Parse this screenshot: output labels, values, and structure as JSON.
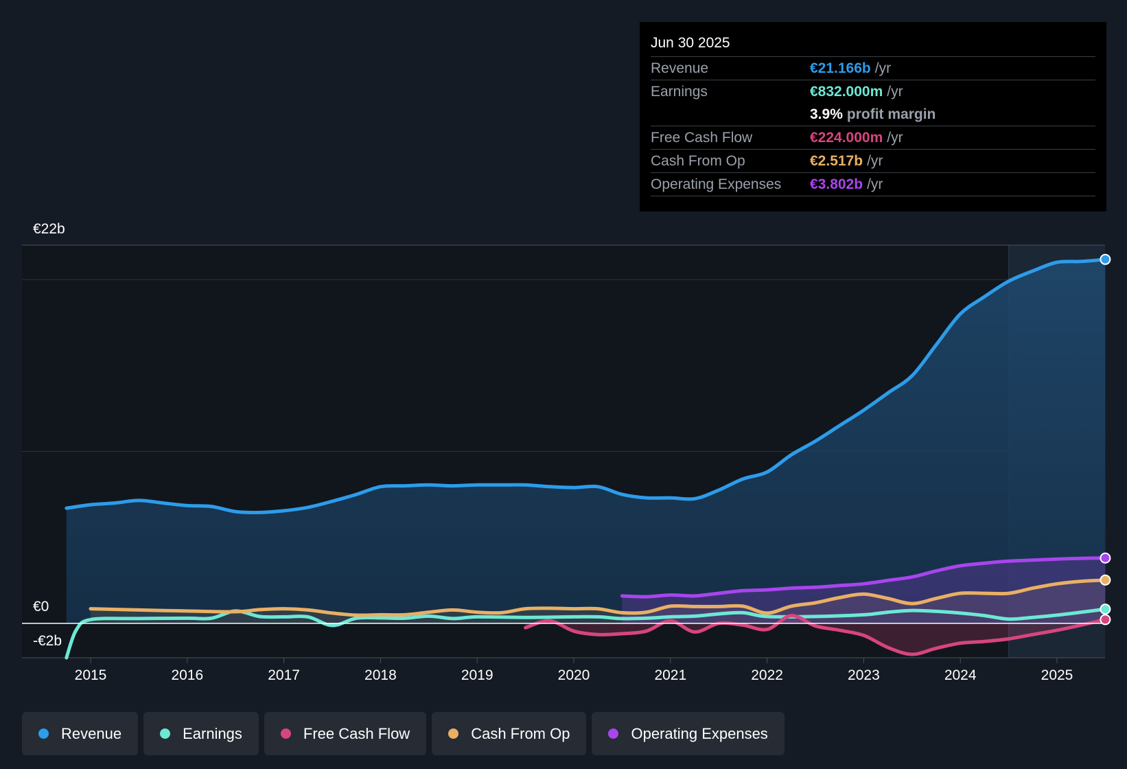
{
  "tooltip": {
    "date": "Jun 30 2025",
    "rows": [
      {
        "label": "Revenue",
        "value": "€21.166b",
        "unit": "/yr",
        "color": "#2d9cea"
      },
      {
        "label": "Earnings",
        "value": "€832.000m",
        "unit": "/yr",
        "color": "#6ce8d4"
      },
      {
        "label": "Free Cash Flow",
        "value": "€224.000m",
        "unit": "/yr",
        "color": "#d7457f"
      },
      {
        "label": "Cash From Op",
        "value": "€2.517b",
        "unit": "/yr",
        "color": "#e9b064"
      },
      {
        "label": "Operating Expenses",
        "value": "€3.802b",
        "unit": "/yr",
        "color": "#a845ee"
      }
    ],
    "margin_value": "3.9%",
    "margin_label": "profit margin"
  },
  "legend": [
    {
      "label": "Revenue",
      "color": "#2d9cea"
    },
    {
      "label": "Earnings",
      "color": "#6ce8d4"
    },
    {
      "label": "Free Cash Flow",
      "color": "#d7457f"
    },
    {
      "label": "Cash From Op",
      "color": "#e9b064"
    },
    {
      "label": "Operating Expenses",
      "color": "#a845ee"
    }
  ],
  "chart_data": {
    "type": "line",
    "title": "",
    "xlabel": "",
    "ylabel": "",
    "y_tick_labels": {
      "top": "€22b",
      "zero": "€0",
      "bottom": "-€2b"
    },
    "ylim": [
      -2,
      22
    ],
    "xlim": [
      2014.5,
      2025.5
    ],
    "x_ticks": [
      2015,
      2016,
      2017,
      2018,
      2019,
      2020,
      2021,
      2022,
      2023,
      2024,
      2025
    ],
    "x_tick_labels": [
      "2015",
      "2016",
      "2017",
      "2018",
      "2019",
      "2020",
      "2021",
      "2022",
      "2023",
      "2024",
      "2025"
    ],
    "highlight_start": 2024.5,
    "series": [
      {
        "name": "Revenue",
        "color": "#2d9cea",
        "fill": true,
        "x": [
          2014.75,
          2015,
          2015.25,
          2015.5,
          2015.75,
          2016,
          2016.25,
          2016.5,
          2016.75,
          2017,
          2017.25,
          2017.5,
          2017.75,
          2018,
          2018.25,
          2018.5,
          2018.75,
          2019,
          2019.25,
          2019.5,
          2019.75,
          2020,
          2020.25,
          2020.5,
          2020.75,
          2021,
          2021.25,
          2021.5,
          2021.75,
          2022,
          2022.25,
          2022.5,
          2022.75,
          2023,
          2023.25,
          2023.5,
          2023.75,
          2024,
          2024.25,
          2024.5,
          2024.75,
          2025,
          2025.25,
          2025.5
        ],
        "y": [
          6.7,
          6.9,
          7.0,
          7.15,
          7.0,
          6.85,
          6.8,
          6.5,
          6.45,
          6.55,
          6.75,
          7.1,
          7.5,
          7.95,
          8.0,
          8.05,
          8.0,
          8.05,
          8.05,
          8.05,
          7.95,
          7.9,
          7.95,
          7.5,
          7.3,
          7.3,
          7.25,
          7.75,
          8.4,
          8.8,
          9.8,
          10.6,
          11.5,
          12.4,
          13.4,
          14.4,
          16.2,
          18.0,
          19.0,
          19.9,
          20.5,
          21.0,
          21.05,
          21.17
        ]
      },
      {
        "name": "Earnings",
        "color": "#6ce8d4",
        "fill": false,
        "x": [
          2014.75,
          2014.85,
          2015,
          2015.5,
          2016,
          2016.25,
          2016.5,
          2016.75,
          2017,
          2017.25,
          2017.5,
          2017.75,
          2018,
          2018.25,
          2018.5,
          2018.75,
          2019,
          2019.5,
          2020,
          2020.25,
          2020.5,
          2020.75,
          2021,
          2021.25,
          2021.5,
          2021.75,
          2022,
          2022.5,
          2023,
          2023.25,
          2023.5,
          2023.75,
          2024,
          2024.25,
          2024.5,
          2024.75,
          2025,
          2025.25,
          2025.5
        ],
        "y": [
          -2.0,
          -0.4,
          0.22,
          0.28,
          0.3,
          0.3,
          0.72,
          0.4,
          0.38,
          0.38,
          -0.12,
          0.3,
          0.32,
          0.3,
          0.42,
          0.28,
          0.38,
          0.35,
          0.38,
          0.38,
          0.28,
          0.3,
          0.38,
          0.42,
          0.55,
          0.62,
          0.4,
          0.4,
          0.5,
          0.65,
          0.75,
          0.7,
          0.6,
          0.45,
          0.25,
          0.35,
          0.48,
          0.65,
          0.83
        ]
      },
      {
        "name": "Free Cash Flow",
        "color": "#d7457f",
        "fill": true,
        "x": [
          2019.5,
          2019.75,
          2020,
          2020.25,
          2020.5,
          2020.75,
          2021,
          2021.25,
          2021.5,
          2021.75,
          2022,
          2022.25,
          2022.5,
          2022.75,
          2023,
          2023.25,
          2023.5,
          2023.75,
          2024,
          2024.25,
          2024.5,
          2024.75,
          2025,
          2025.25,
          2025.5
        ],
        "y": [
          -0.25,
          0.15,
          -0.45,
          -0.65,
          -0.6,
          -0.45,
          0.15,
          -0.5,
          0.0,
          -0.1,
          -0.35,
          0.45,
          -0.15,
          -0.4,
          -0.7,
          -1.4,
          -1.8,
          -1.45,
          -1.15,
          -1.05,
          -0.9,
          -0.65,
          -0.4,
          -0.1,
          0.22
        ]
      },
      {
        "name": "Cash From Op",
        "color": "#e9b064",
        "fill": true,
        "x": [
          2015,
          2015.5,
          2016,
          2016.5,
          2016.75,
          2017,
          2017.25,
          2017.5,
          2017.75,
          2018,
          2018.25,
          2018.5,
          2018.75,
          2019,
          2019.25,
          2019.5,
          2019.75,
          2020,
          2020.25,
          2020.5,
          2020.75,
          2021,
          2021.25,
          2021.5,
          2021.75,
          2022,
          2022.25,
          2022.5,
          2022.75,
          2023,
          2023.25,
          2023.5,
          2023.75,
          2024,
          2024.25,
          2024.5,
          2024.75,
          2025,
          2025.25,
          2025.5
        ],
        "y": [
          0.85,
          0.78,
          0.72,
          0.68,
          0.8,
          0.85,
          0.78,
          0.6,
          0.48,
          0.5,
          0.5,
          0.65,
          0.78,
          0.65,
          0.62,
          0.85,
          0.88,
          0.85,
          0.85,
          0.62,
          0.65,
          1.0,
          0.98,
          0.98,
          1.0,
          0.6,
          1.0,
          1.2,
          1.5,
          1.7,
          1.45,
          1.15,
          1.45,
          1.75,
          1.75,
          1.75,
          2.05,
          2.3,
          2.45,
          2.52
        ]
      },
      {
        "name": "Operating Expenses",
        "color": "#a845ee",
        "fill": true,
        "x": [
          2020.5,
          2020.75,
          2021,
          2021.25,
          2021.5,
          2021.75,
          2022,
          2022.25,
          2022.5,
          2022.75,
          2023,
          2023.25,
          2023.5,
          2023.75,
          2024,
          2024.25,
          2024.5,
          2024.75,
          2025,
          2025.25,
          2025.5
        ],
        "y": [
          1.6,
          1.55,
          1.65,
          1.6,
          1.75,
          1.9,
          1.95,
          2.05,
          2.1,
          2.2,
          2.3,
          2.5,
          2.7,
          3.05,
          3.35,
          3.5,
          3.62,
          3.68,
          3.74,
          3.78,
          3.8
        ]
      }
    ]
  }
}
